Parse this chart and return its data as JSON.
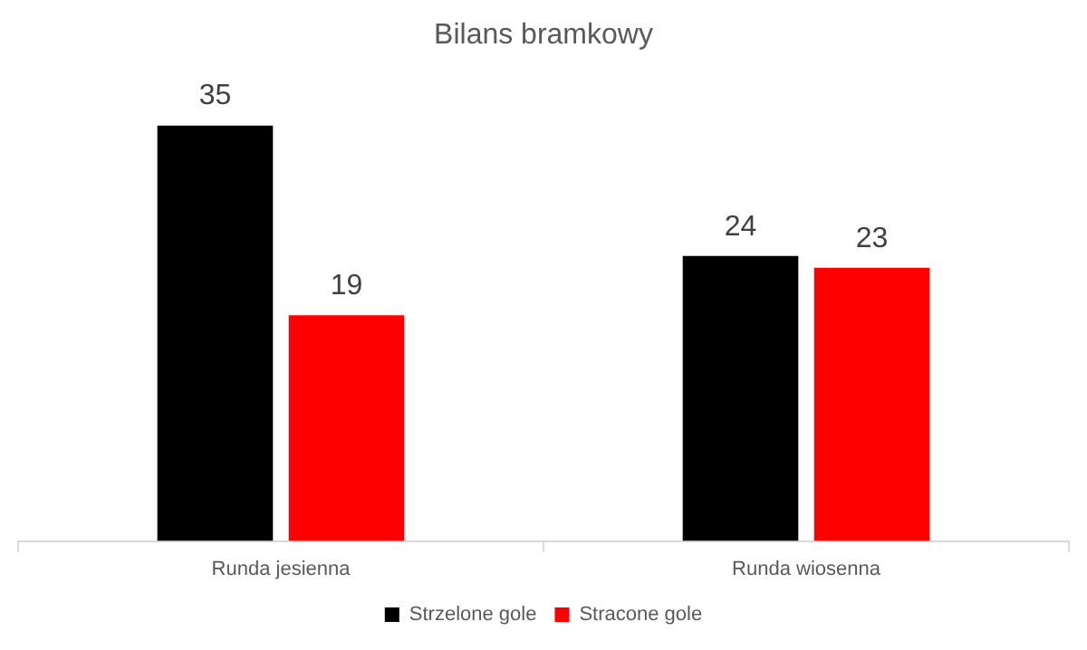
{
  "chart_data": {
    "type": "bar",
    "title": "Bilans bramkowy",
    "categories": [
      "Runda jesienna",
      "Runda wiosenna"
    ],
    "series": [
      {
        "name": "Strzelone gole",
        "color": "#000000",
        "values": [
          35,
          24
        ]
      },
      {
        "name": "Stracone gole",
        "color": "#ff0000",
        "values": [
          19,
          23
        ]
      }
    ],
    "data_labels": true,
    "legend": "bottom",
    "grid": false,
    "tick_labels": "x"
  }
}
